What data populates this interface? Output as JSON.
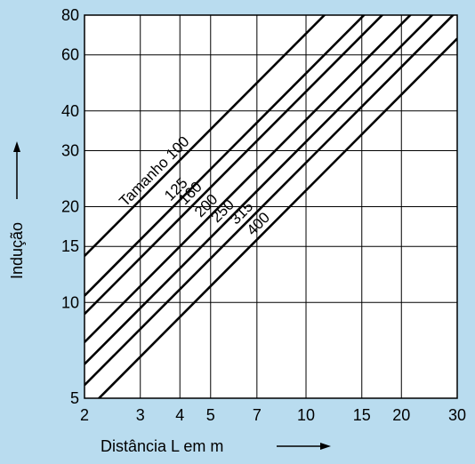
{
  "chart_data": {
    "type": "line",
    "xlabel": "Distância L em m",
    "ylabel": "Indução",
    "x_scale": "log",
    "y_scale": "log",
    "xlim": [
      2,
      30
    ],
    "ylim": [
      5,
      80
    ],
    "x_ticks": [
      2,
      3,
      4,
      5,
      7,
      10,
      15,
      20,
      30
    ],
    "y_ticks": [
      5,
      10,
      15,
      20,
      30,
      40,
      60,
      80
    ],
    "grid": true,
    "background_color": "#b9dcef",
    "plot_color": "#ffffff",
    "line_color": "#000000",
    "series": [
      {
        "name": "Tamanho 100",
        "x": [
          2,
          30
        ],
        "y": [
          14,
          210
        ]
      },
      {
        "name": "125",
        "x": [
          2,
          30
        ],
        "y": [
          10.5,
          157.5
        ]
      },
      {
        "name": "160",
        "x": [
          2,
          30
        ],
        "y": [
          9.2,
          138
        ]
      },
      {
        "name": "200",
        "x": [
          2,
          30
        ],
        "y": [
          7.5,
          112.5
        ]
      },
      {
        "name": "250",
        "x": [
          2,
          30
        ],
        "y": [
          6.4,
          96
        ]
      },
      {
        "name": "315",
        "x": [
          2,
          30
        ],
        "y": [
          5.5,
          82.5
        ]
      },
      {
        "name": "400",
        "x": [
          2,
          30
        ],
        "y": [
          4.5,
          67.5
        ]
      }
    ]
  }
}
